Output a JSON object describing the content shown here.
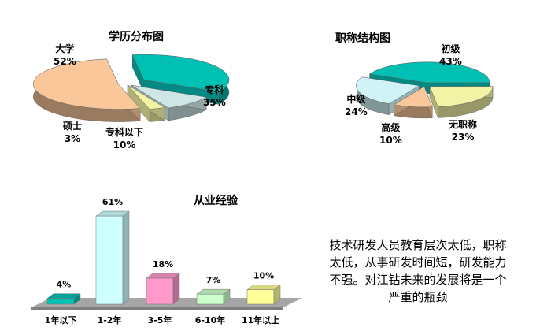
{
  "chart_data": [
    {
      "type": "pie",
      "title": "学历分布图",
      "labels": [
        "大学",
        "专科",
        "专科以下",
        "硕士"
      ],
      "values": [
        52,
        35,
        10,
        3
      ],
      "value_labels": [
        "52%",
        "35%",
        "10%",
        "3%"
      ],
      "colors": [
        "#F9C79A",
        "#00C0B4",
        "#CFE6E6",
        "#F3F3A6"
      ]
    },
    {
      "type": "pie",
      "title": "职称结构图",
      "labels": [
        "初级",
        "无职称",
        "高级",
        "中级"
      ],
      "values": [
        43,
        23,
        10,
        24
      ],
      "value_labels": [
        "43%",
        "23%",
        "10%",
        "24%"
      ],
      "colors": [
        "#00C0B4",
        "#F3F3A6",
        "#F9C79A",
        "#CFF3F6"
      ]
    },
    {
      "type": "bar",
      "title": "从业经验",
      "categories": [
        "1年以下",
        "1-2年",
        "3-5年",
        "6-10年",
        "11年以上"
      ],
      "values": [
        4,
        61,
        18,
        7,
        10
      ],
      "value_labels": [
        "4%",
        "61%",
        "18%",
        "7%",
        "10%"
      ],
      "colors": [
        "#00C0B4",
        "#CCFFFF",
        "#FF99CC",
        "#CCFFCC",
        "#FFFF99"
      ],
      "ylim": [
        0,
        61
      ],
      "grid": false
    }
  ],
  "note": "技术研发人员教育层次太低，职称太低，从事研发时间短，研发能力不强。对江钻未来的发展将是一个严重的瓶颈"
}
